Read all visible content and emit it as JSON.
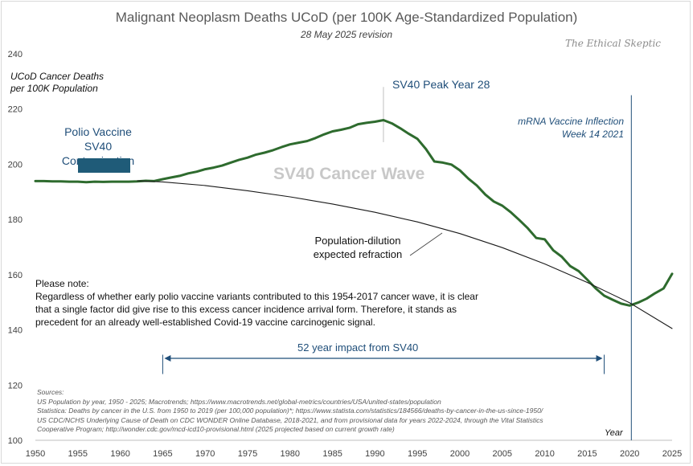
{
  "chart_data": {
    "type": "line",
    "title": "Malignant Neoplasm Deaths UCoD (per 100K Age-Standardized Population)",
    "subtitle": "28 May 2025 revision",
    "watermark": "The Ethical Skeptic",
    "ylabel": "UCoD Cancer Deaths\nper 100K Population",
    "xlabel": "Year",
    "xlim": [
      1950,
      2025
    ],
    "ylim": [
      100,
      240
    ],
    "x_ticks": [
      "1950",
      "1955",
      "1960",
      "1965",
      "1970",
      "1975",
      "1980",
      "1985",
      "1990",
      "1995",
      "2000",
      "2005",
      "2010",
      "2015",
      "2020",
      "2025"
    ],
    "y_ticks": [
      "100",
      "120",
      "140",
      "160",
      "180",
      "200",
      "220",
      "240"
    ],
    "grid": false,
    "series": [
      {
        "name": "",
        "color": "#2e6b2e",
        "x": [
          1950,
          1951,
          1952,
          1953,
          1954,
          1955,
          1956,
          1957,
          1958,
          1959,
          1960,
          1961,
          1962,
          1963,
          1964,
          1965,
          1966,
          1967,
          1968,
          1969,
          1970,
          1971,
          1972,
          1973,
          1974,
          1975,
          1976,
          1977,
          1978,
          1979,
          1980,
          1981,
          1982,
          1983,
          1984,
          1985,
          1986,
          1987,
          1988,
          1989,
          1990,
          1991,
          1992,
          1993,
          1994,
          1995,
          1996,
          1997,
          1998,
          1999,
          2000,
          2001,
          2002,
          2003,
          2004,
          2005,
          2006,
          2007,
          2008,
          2009,
          2010,
          2011,
          2012,
          2013,
          2014,
          2015,
          2016,
          2017,
          2018,
          2019,
          2020,
          2021,
          2022,
          2023,
          2024,
          2025
        ],
        "y": [
          193.9,
          193.9,
          193.8,
          193.8,
          193.7,
          193.7,
          193.5,
          193.7,
          193.6,
          193.7,
          193.7,
          193.7,
          193.8,
          194.0,
          193.9,
          194.6,
          195.2,
          195.8,
          196.7,
          197.3,
          198.2,
          198.8,
          199.5,
          200.6,
          201.6,
          202.4,
          203.5,
          204.2,
          205.1,
          206.2,
          207.2,
          207.8,
          208.4,
          209.5,
          210.8,
          211.9,
          212.5,
          213.2,
          214.5,
          215.0,
          215.4,
          216.0,
          214.8,
          213.0,
          211.0,
          209.2,
          205.5,
          201.0,
          200.6,
          199.9,
          197.8,
          194.8,
          192.3,
          189.0,
          186.5,
          185.0,
          182.6,
          179.8,
          176.8,
          173.3,
          172.8,
          168.8,
          166.5,
          163.1,
          161.3,
          158.2,
          155.0,
          152.4,
          150.9,
          149.5,
          148.8,
          149.9,
          151.3,
          153.3,
          155.0,
          160.3
        ]
      },
      {
        "name": "",
        "color": "#1a1a1a",
        "x": [
          1962,
          1965,
          1970,
          1975,
          1980,
          1985,
          1990,
          1995,
          2000,
          2005,
          2010,
          2015,
          2020,
          2025
        ],
        "y": [
          194.0,
          193.6,
          192.3,
          190.4,
          188.2,
          185.6,
          182.6,
          179.1,
          174.9,
          169.8,
          163.9,
          157.2,
          149.8,
          140.5
        ]
      }
    ],
    "annotations": {
      "polio": "Polio Vaccine\nSV40 Contamination",
      "peak": "SV40 Peak Year 28",
      "wave": "SV40 Cancer Wave",
      "mrna": "mRNA Vaccine Inflection\nWeek 14 2021",
      "dilution": "Population-dilution\nexpected refraction",
      "impact": "52 year impact from SV40",
      "note": "Please note:\nRegardless of whether early polio vaccine variants contributed to this 1954-2017 cancer wave, it is clear that a single factor did give rise to this excess cancer incidence arrival form. Therefore, it stands as precedent for an already well-established Covid-19 vaccine carcinogenic signal."
    },
    "sources": [
      "Sources:",
      "US Population by year, 1950 - 2025; Macrotrends; https://www.macrotrends.net/global-metrics/countries/USA/united-states/population",
      "Statistica: Deaths by cancer in the U.S. from 1950 to 2019 (per 100,000 population)*; https://www.statista.com/statistics/184566/deaths-by-cancer-in-the-us-since-1950/",
      "US CDC/NCHS Underlying Cause of Death on CDC WONDER Online Database, 2018-2021, and from provisional data for years 2022-2024, through the Vital Statistics",
      "Cooperative Program; http://wonder.cdc.gov/mcd-icd10-provisional.html (2025 projected based on current growth rate)"
    ]
  }
}
